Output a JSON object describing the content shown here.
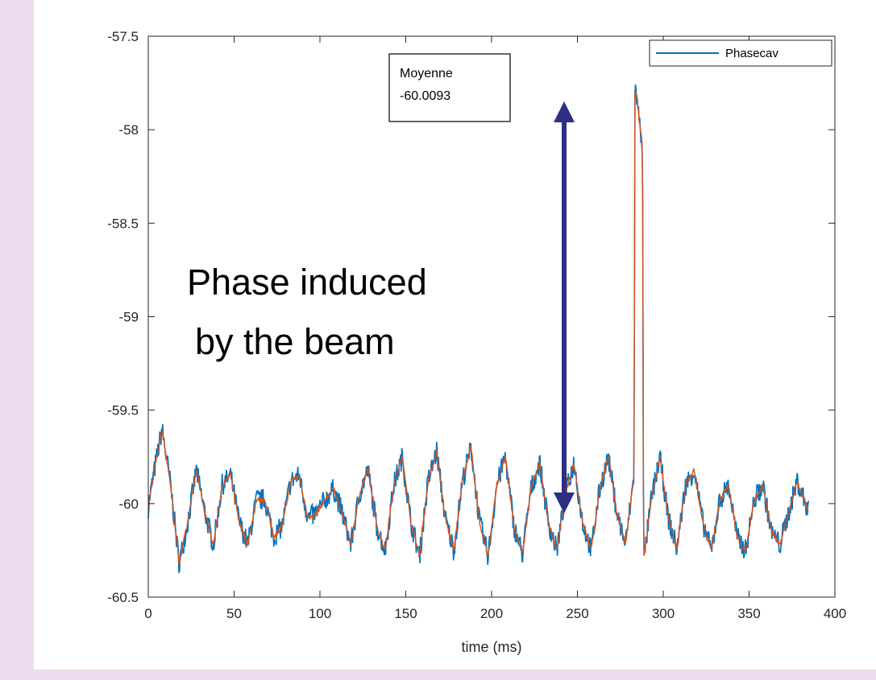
{
  "chart_data": {
    "type": "line",
    "xlabel": "time (ms)",
    "ylabel": "",
    "xlim": [
      0,
      400
    ],
    "ylim": [
      -60.5,
      -57.5
    ],
    "x_ticks": [
      "0",
      "50",
      "100",
      "150",
      "200",
      "250",
      "300",
      "350",
      "400"
    ],
    "y_ticks": [
      "-57.5",
      "-58",
      "-58.5",
      "-59",
      "-59.5",
      "-60",
      "-60.5"
    ],
    "grid": false,
    "legend": {
      "placement": "top-right",
      "entries": [
        "Phasecav"
      ]
    },
    "series": [
      {
        "name": "Phasecav",
        "color": "#0072bd",
        "x": [
          0,
          3,
          8,
          13,
          18,
          23,
          28,
          33,
          38,
          43,
          48,
          53,
          58,
          63,
          68,
          73,
          78,
          83,
          88,
          93,
          98,
          103,
          108,
          113,
          118,
          123,
          128,
          133,
          138,
          143,
          148,
          153,
          158,
          163,
          168,
          173,
          178,
          183,
          188,
          193,
          198,
          203,
          208,
          213,
          218,
          223,
          228,
          233,
          238,
          243,
          248,
          253,
          258,
          263,
          268,
          273,
          278,
          283,
          283.5,
          284,
          286,
          288,
          288.5,
          289,
          293,
          298,
          303,
          308,
          313,
          318,
          323,
          328,
          333,
          338,
          343,
          348,
          353,
          358,
          363,
          368,
          373,
          378,
          383,
          385
        ],
        "y": [
          -60.02,
          -59.85,
          -59.6,
          -59.9,
          -60.32,
          -60.1,
          -59.82,
          -60.05,
          -60.22,
          -59.9,
          -59.85,
          -60.1,
          -60.22,
          -59.98,
          -59.98,
          -60.18,
          -60.12,
          -59.88,
          -59.85,
          -60.08,
          -60.05,
          -59.98,
          -59.92,
          -60.05,
          -60.22,
          -59.95,
          -59.82,
          -60.12,
          -60.25,
          -59.9,
          -59.75,
          -60.1,
          -60.28,
          -59.88,
          -59.72,
          -60.08,
          -60.25,
          -59.88,
          -59.7,
          -60.1,
          -60.28,
          -59.9,
          -59.75,
          -60.12,
          -60.27,
          -59.92,
          -59.78,
          -60.1,
          -60.25,
          -59.95,
          -59.78,
          -60.1,
          -60.25,
          -59.92,
          -59.75,
          -60.05,
          -60.22,
          -59.85,
          -57.82,
          -57.78,
          -57.95,
          -58.1,
          -60.28,
          -60.28,
          -59.98,
          -59.75,
          -60.08,
          -60.24,
          -59.9,
          -59.82,
          -60.1,
          -60.25,
          -59.98,
          -59.9,
          -60.18,
          -60.25,
          -59.98,
          -59.9,
          -60.15,
          -60.22,
          -60.05,
          -59.88,
          -60.0,
          -60.05
        ]
      }
    ],
    "annotations": {
      "mean_box": {
        "label": "Moyenne",
        "value": "-60.0093"
      },
      "text_line1": "Phase induced",
      "text_line2": "by the beam"
    }
  },
  "colors": {
    "raw": "#0072bd",
    "smoothed": "#d95319",
    "arrow": "#2e2e82",
    "background": "#eedcee"
  }
}
